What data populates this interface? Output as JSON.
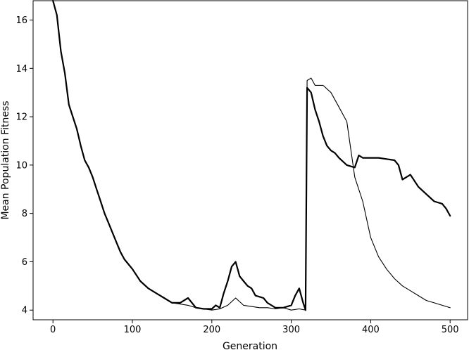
{
  "chart_data": {
    "type": "line",
    "title": "",
    "xlabel": "Generation",
    "ylabel": "Mean Population Fitness",
    "xlim": [
      -25,
      522
    ],
    "ylim": [
      3.6,
      16.8
    ],
    "xticks": [
      0,
      100,
      200,
      300,
      400,
      500
    ],
    "yticks": [
      4,
      6,
      8,
      10,
      12,
      14,
      16
    ],
    "grid": false,
    "legend": "none",
    "line_color": "#000000",
    "series": [
      {
        "style": "thick",
        "x": [
          0,
          5,
          10,
          15,
          20,
          25,
          30,
          35,
          40,
          45,
          50,
          55,
          60,
          65,
          70,
          75,
          80,
          85,
          90,
          100,
          110,
          120,
          130,
          140,
          150,
          160,
          170,
          180,
          190,
          200,
          205,
          210,
          215,
          220,
          225,
          230,
          235,
          240,
          245,
          250,
          255,
          260,
          265,
          270,
          280,
          290,
          300,
          305,
          310,
          315,
          318,
          320,
          325,
          330,
          335,
          340,
          345,
          350,
          355,
          360,
          370,
          380,
          385,
          390,
          400,
          410,
          420,
          430,
          435,
          440,
          450,
          460,
          470,
          480,
          490,
          495,
          500
        ],
        "y": [
          16.8,
          16.2,
          14.7,
          13.8,
          12.5,
          12.0,
          11.5,
          10.8,
          10.2,
          9.9,
          9.5,
          9.0,
          8.5,
          8.0,
          7.6,
          7.2,
          6.8,
          6.4,
          6.1,
          5.7,
          5.2,
          4.9,
          4.7,
          4.5,
          4.3,
          4.3,
          4.5,
          4.1,
          4.05,
          4.05,
          4.2,
          4.1,
          4.7,
          5.2,
          5.8,
          6.0,
          5.4,
          5.2,
          5.0,
          4.9,
          4.6,
          4.55,
          4.5,
          4.3,
          4.1,
          4.1,
          4.2,
          4.6,
          4.9,
          4.3,
          4.0,
          13.2,
          13.0,
          12.3,
          11.8,
          11.2,
          10.8,
          10.6,
          10.5,
          10.3,
          10.0,
          9.9,
          10.4,
          10.3,
          10.3,
          10.3,
          10.25,
          10.2,
          10.0,
          9.4,
          9.6,
          9.1,
          8.8,
          8.5,
          8.4,
          8.2,
          7.9
        ]
      },
      {
        "style": "thin",
        "x": [
          0,
          5,
          10,
          15,
          20,
          25,
          30,
          35,
          40,
          45,
          50,
          55,
          60,
          65,
          70,
          75,
          80,
          85,
          90,
          100,
          110,
          120,
          130,
          140,
          150,
          160,
          170,
          180,
          190,
          200,
          210,
          220,
          230,
          240,
          250,
          260,
          270,
          280,
          290,
          300,
          310,
          318,
          320,
          325,
          330,
          340,
          350,
          360,
          370,
          380,
          390,
          400,
          410,
          420,
          430,
          440,
          450,
          460,
          470,
          480,
          490,
          500
        ],
        "y": [
          16.8,
          16.2,
          14.7,
          13.8,
          12.5,
          12.0,
          11.5,
          10.8,
          10.2,
          9.9,
          9.5,
          9.0,
          8.5,
          8.0,
          7.6,
          7.2,
          6.8,
          6.4,
          6.1,
          5.7,
          5.2,
          4.9,
          4.7,
          4.5,
          4.3,
          4.25,
          4.2,
          4.1,
          4.05,
          4.0,
          4.05,
          4.2,
          4.5,
          4.2,
          4.15,
          4.1,
          4.1,
          4.05,
          4.1,
          4.0,
          4.05,
          4.0,
          13.5,
          13.6,
          13.3,
          13.3,
          13.0,
          12.4,
          11.8,
          9.5,
          8.5,
          7.0,
          6.2,
          5.7,
          5.3,
          5.0,
          4.8,
          4.6,
          4.4,
          4.3,
          4.2,
          4.1
        ]
      }
    ]
  }
}
